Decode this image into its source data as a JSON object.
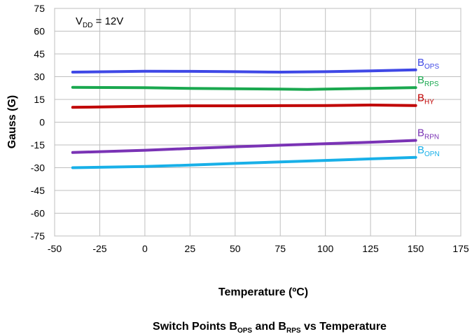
{
  "chart_data": {
    "type": "line",
    "title": "Switch Points B",
    "title_sub1": "OPS",
    "title_mid": " and B",
    "title_sub2": "RPS",
    "title_end": " vs Temperature",
    "xlabel": "Temperature (ºC)",
    "ylabel": "Gauss  (G)",
    "annotation": {
      "prefix": "V",
      "sub": "DD",
      "suffix": " = 12V"
    },
    "xlim": [
      -50,
      175
    ],
    "ylim": [
      -75,
      75
    ],
    "xticks": [
      -50,
      -25,
      0,
      25,
      50,
      75,
      100,
      125,
      150,
      175
    ],
    "yticks": [
      75,
      60,
      45,
      30,
      15,
      0,
      -15,
      -30,
      -45,
      -60,
      -75
    ],
    "grid": true,
    "series": [
      {
        "name": "B",
        "sub": "OPS",
        "color": "#3f48e6",
        "x": [
          -40,
          0,
          25,
          50,
          75,
          100,
          125,
          150
        ],
        "y": [
          33.0,
          33.6,
          33.5,
          33.3,
          33.0,
          33.3,
          33.8,
          34.5
        ]
      },
      {
        "name": "B",
        "sub": "RPS",
        "color": "#1aa84f",
        "x": [
          -40,
          0,
          25,
          50,
          75,
          90,
          100,
          125,
          150
        ],
        "y": [
          23.0,
          22.7,
          22.3,
          22.0,
          21.8,
          21.6,
          21.8,
          22.3,
          22.8
        ]
      },
      {
        "name": "B",
        "sub": "HY",
        "color": "#c00000",
        "x": [
          -40,
          0,
          25,
          50,
          75,
          100,
          125,
          150
        ],
        "y": [
          9.8,
          10.5,
          10.8,
          10.8,
          10.9,
          11.0,
          11.3,
          11.0
        ]
      },
      {
        "name": "B",
        "sub": "RPN",
        "color": "#7a33b5",
        "x": [
          -40,
          0,
          25,
          50,
          75,
          100,
          125,
          150
        ],
        "y": [
          -20.0,
          -18.5,
          -17.3,
          -16.2,
          -15.2,
          -14.2,
          -13.2,
          -12.0
        ]
      },
      {
        "name": "B",
        "sub": "OPN",
        "color": "#18b0e8",
        "x": [
          -40,
          0,
          25,
          50,
          75,
          100,
          125,
          150
        ],
        "y": [
          -30.0,
          -29.2,
          -28.3,
          -27.2,
          -26.2,
          -25.2,
          -24.2,
          -23.2
        ]
      }
    ]
  }
}
